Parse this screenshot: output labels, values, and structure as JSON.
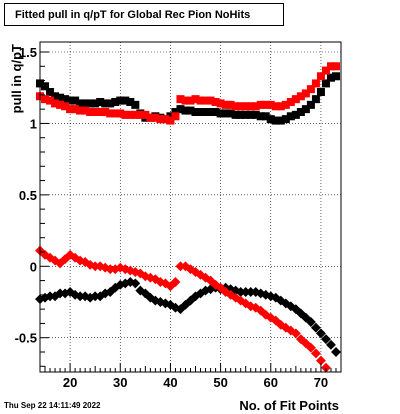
{
  "chart_data": {
    "type": "scatter",
    "title": "Fitted pull in q/pT for Global Rec Pion NoHits",
    "xlabel": "No. of Fit Points",
    "ylabel": "pull in q/pT",
    "xlim": [
      14,
      74
    ],
    "ylim": [
      -0.74,
      1.57
    ],
    "x_ticks": [
      20,
      30,
      40,
      50,
      60,
      70
    ],
    "y_ticks": [
      -0.5,
      0,
      0.5,
      1,
      1.5
    ],
    "x_tick_labels": [
      "20",
      "30",
      "40",
      "50",
      "60",
      "70"
    ],
    "y_tick_labels": [
      "-0.5",
      "0",
      "0.5",
      "1",
      "1.5"
    ],
    "grid": true,
    "timestamp": "Thu Sep 22 14:11:49 2022",
    "series": [
      {
        "color": "#000000",
        "marker": "square",
        "x": [
          14,
          15,
          16,
          17,
          18,
          19,
          20,
          21,
          22,
          23,
          24,
          25,
          26,
          27,
          28,
          29,
          30,
          31,
          32,
          33,
          34,
          35,
          36,
          37,
          38,
          39,
          40,
          41,
          42,
          43,
          44,
          45,
          46,
          47,
          48,
          49,
          50,
          51,
          52,
          53,
          54,
          55,
          56,
          57,
          58,
          59,
          60,
          61,
          62,
          63,
          64,
          65,
          66,
          67,
          68,
          69,
          70,
          71,
          72,
          73
        ],
        "y": [
          1.28,
          1.26,
          1.22,
          1.19,
          1.18,
          1.17,
          1.16,
          1.16,
          1.14,
          1.14,
          1.14,
          1.14,
          1.15,
          1.14,
          1.14,
          1.15,
          1.16,
          1.16,
          1.15,
          1.13,
          1.07,
          1.04,
          1.04,
          1.05,
          1.04,
          1.03,
          1.05,
          1.08,
          1.1,
          1.09,
          1.09,
          1.08,
          1.08,
          1.08,
          1.08,
          1.08,
          1.07,
          1.07,
          1.07,
          1.06,
          1.06,
          1.06,
          1.06,
          1.06,
          1.05,
          1.05,
          1.03,
          1.02,
          1.02,
          1.03,
          1.05,
          1.06,
          1.08,
          1.1,
          1.13,
          1.17,
          1.22,
          1.28,
          1.32,
          1.33
        ]
      },
      {
        "color": "#ff0000",
        "marker": "square",
        "x": [
          14,
          15,
          16,
          17,
          18,
          19,
          20,
          21,
          22,
          23,
          24,
          25,
          26,
          27,
          28,
          29,
          30,
          31,
          32,
          33,
          34,
          35,
          36,
          37,
          38,
          39,
          40,
          41,
          42,
          43,
          44,
          45,
          46,
          47,
          48,
          49,
          50,
          51,
          52,
          53,
          54,
          55,
          56,
          57,
          58,
          59,
          60,
          61,
          62,
          63,
          64,
          65,
          66,
          67,
          68,
          69,
          70,
          71,
          72,
          73
        ],
        "y": [
          1.19,
          1.17,
          1.16,
          1.14,
          1.13,
          1.12,
          1.1,
          1.1,
          1.09,
          1.09,
          1.08,
          1.08,
          1.08,
          1.08,
          1.07,
          1.07,
          1.07,
          1.06,
          1.06,
          1.06,
          1.06,
          1.06,
          1.04,
          1.04,
          1.03,
          1.03,
          1.02,
          1.05,
          1.17,
          1.16,
          1.16,
          1.17,
          1.16,
          1.16,
          1.16,
          1.15,
          1.14,
          1.13,
          1.13,
          1.12,
          1.12,
          1.12,
          1.12,
          1.12,
          1.13,
          1.13,
          1.13,
          1.12,
          1.12,
          1.13,
          1.15,
          1.17,
          1.19,
          1.21,
          1.24,
          1.28,
          1.33,
          1.37,
          1.4,
          1.4
        ]
      },
      {
        "color": "#000000",
        "marker": "circle",
        "x": [
          14,
          15,
          16,
          17,
          18,
          19,
          20,
          21,
          22,
          23,
          24,
          25,
          26,
          27,
          28,
          29,
          30,
          31,
          32,
          33,
          34,
          35,
          36,
          37,
          38,
          39,
          40,
          41,
          42,
          43,
          44,
          45,
          46,
          47,
          48,
          49,
          50,
          51,
          52,
          53,
          54,
          55,
          56,
          57,
          58,
          59,
          60,
          61,
          62,
          63,
          64,
          65,
          66,
          67,
          68,
          69,
          70,
          71,
          72,
          73
        ],
        "y": [
          -0.23,
          -0.22,
          -0.21,
          -0.21,
          -0.19,
          -0.19,
          -0.18,
          -0.2,
          -0.21,
          -0.21,
          -0.22,
          -0.21,
          -0.21,
          -0.19,
          -0.18,
          -0.15,
          -0.13,
          -0.12,
          -0.11,
          -0.12,
          -0.17,
          -0.19,
          -0.22,
          -0.24,
          -0.25,
          -0.26,
          -0.27,
          -0.29,
          -0.3,
          -0.27,
          -0.24,
          -0.21,
          -0.19,
          -0.17,
          -0.16,
          -0.15,
          -0.16,
          -0.15,
          -0.16,
          -0.17,
          -0.18,
          -0.18,
          -0.18,
          -0.18,
          -0.19,
          -0.2,
          -0.21,
          -0.22,
          -0.24,
          -0.26,
          -0.28,
          -0.3,
          -0.33,
          -0.36,
          -0.39,
          -0.43,
          -0.47,
          -0.51,
          -0.55,
          -0.6
        ]
      },
      {
        "color": "#ff0000",
        "marker": "circle",
        "x": [
          14,
          15,
          16,
          17,
          18,
          19,
          20,
          21,
          22,
          23,
          24,
          25,
          26,
          27,
          28,
          29,
          30,
          31,
          32,
          33,
          34,
          35,
          36,
          37,
          38,
          39,
          40,
          41,
          42,
          43,
          44,
          45,
          46,
          47,
          48,
          49,
          50,
          51,
          52,
          53,
          54,
          55,
          56,
          57,
          58,
          59,
          60,
          61,
          62,
          63,
          64,
          65,
          66,
          67,
          68,
          69,
          70,
          71,
          72,
          73
        ],
        "y": [
          0.11,
          0.08,
          0.06,
          0.04,
          0.02,
          0.05,
          0.08,
          0.06,
          0.04,
          0.03,
          0.01,
          0.0,
          0.0,
          -0.01,
          -0.02,
          -0.02,
          -0.01,
          -0.02,
          -0.03,
          -0.04,
          -0.05,
          -0.07,
          -0.08,
          -0.09,
          -0.11,
          -0.12,
          -0.14,
          -0.11,
          0.0,
          0.0,
          -0.02,
          -0.04,
          -0.06,
          -0.08,
          -0.1,
          -0.13,
          -0.15,
          -0.18,
          -0.2,
          -0.22,
          -0.24,
          -0.26,
          -0.28,
          -0.29,
          -0.31,
          -0.34,
          -0.36,
          -0.38,
          -0.41,
          -0.43,
          -0.45,
          -0.47,
          -0.51,
          -0.54,
          -0.57,
          -0.61,
          -0.66,
          -0.71,
          null,
          null
        ]
      }
    ]
  }
}
